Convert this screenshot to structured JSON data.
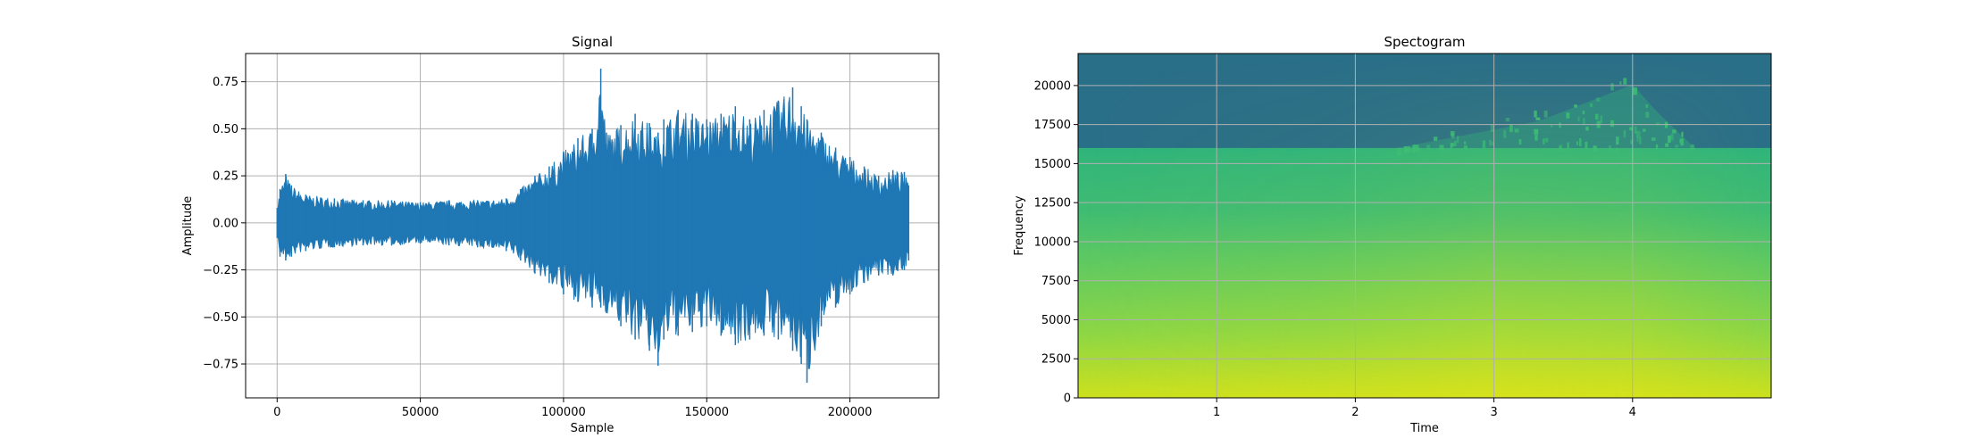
{
  "chart_data": [
    {
      "type": "line",
      "title": "Signal",
      "xlabel": "Sample",
      "ylabel": "Amplitude",
      "xlim": [
        -11000,
        231000
      ],
      "ylim": [
        -0.93,
        0.9
      ],
      "xticks": [
        0,
        50000,
        100000,
        150000,
        200000
      ],
      "xtick_labels": [
        "0",
        "50000",
        "100000",
        "150000",
        "200000"
      ],
      "yticks": [
        -0.75,
        -0.5,
        -0.25,
        0.0,
        0.25,
        0.5,
        0.75
      ],
      "ytick_labels": [
        "−0.75",
        "−0.50",
        "−0.25",
        "0.00",
        "0.25",
        "0.50",
        "0.75"
      ],
      "grid": true,
      "color": "#1f77b4",
      "series": [
        {
          "x": [
            0,
            1000,
            3000,
            5000,
            10000,
            20000,
            30000,
            40000,
            50000,
            60000,
            70000,
            80000,
            85000,
            90000,
            95000,
            100000,
            105000,
            110000,
            113000,
            115000,
            120000,
            125000,
            130000,
            133000,
            135000,
            140000,
            145000,
            150000,
            155000,
            160000,
            165000,
            170000,
            175000,
            180000,
            183000,
            185000,
            190000,
            195000,
            200000,
            205000,
            210000,
            215000,
            219000,
            220500
          ],
          "upper": [
            0.08,
            0.18,
            0.26,
            0.2,
            0.15,
            0.13,
            0.12,
            0.12,
            0.11,
            0.12,
            0.12,
            0.13,
            0.18,
            0.25,
            0.3,
            0.38,
            0.45,
            0.5,
            0.82,
            0.48,
            0.52,
            0.58,
            0.53,
            0.48,
            0.55,
            0.6,
            0.58,
            0.55,
            0.58,
            0.62,
            0.55,
            0.6,
            0.65,
            0.72,
            0.62,
            0.55,
            0.48,
            0.4,
            0.35,
            0.3,
            0.25,
            0.28,
            0.27,
            0.2
          ],
          "lower": [
            -0.08,
            -0.18,
            -0.2,
            -0.18,
            -0.15,
            -0.13,
            -0.12,
            -0.12,
            -0.11,
            -0.12,
            -0.13,
            -0.15,
            -0.2,
            -0.27,
            -0.32,
            -0.38,
            -0.42,
            -0.45,
            -0.45,
            -0.48,
            -0.55,
            -0.62,
            -0.68,
            -0.76,
            -0.62,
            -0.6,
            -0.58,
            -0.55,
            -0.6,
            -0.65,
            -0.62,
            -0.6,
            -0.62,
            -0.68,
            -0.75,
            -0.85,
            -0.55,
            -0.45,
            -0.38,
            -0.32,
            -0.28,
            -0.28,
            -0.25,
            -0.2
          ]
        }
      ]
    },
    {
      "type": "heatmap",
      "title": "Spectogram",
      "xlabel": "Time",
      "ylabel": "Frequency",
      "xlim": [
        0,
        5.0
      ],
      "ylim": [
        0,
        22050
      ],
      "xticks": [
        1,
        2,
        3,
        4
      ],
      "xtick_labels": [
        "1",
        "2",
        "3",
        "4"
      ],
      "yticks": [
        0,
        2500,
        5000,
        7500,
        10000,
        12500,
        15000,
        17500,
        20000
      ],
      "ytick_labels": [
        "0",
        "2500",
        "5000",
        "7500",
        "10000",
        "12500",
        "15000",
        "17500",
        "20000"
      ],
      "grid": true,
      "colormap": "viridis",
      "cutoff_frequency": 16000,
      "high_band_color": "#2a6f88",
      "burst": {
        "time_start": 2.3,
        "time_end": 4.45,
        "freq_top_max": 21200
      }
    }
  ]
}
